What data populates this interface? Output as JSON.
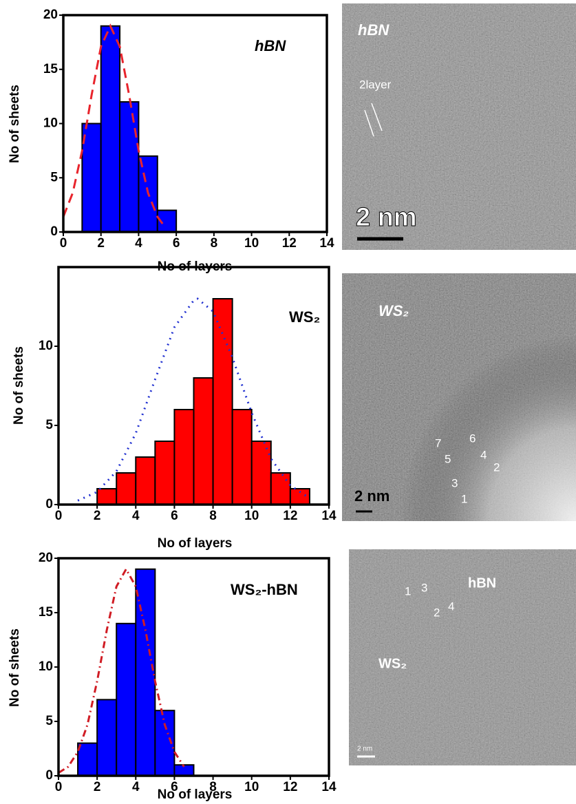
{
  "chart_data": [
    {
      "type": "histogram",
      "annotation": "hBN",
      "xlabel": "No of layers",
      "ylabel": "No of sheets",
      "bins": [
        1,
        2,
        3,
        4,
        5,
        6
      ],
      "values": [
        10,
        19,
        12,
        7,
        2
      ],
      "color": "#0000ff",
      "fit": {
        "x": [
          0,
          0.5,
          1,
          1.5,
          2,
          2.5,
          3,
          3.5,
          4,
          4.5,
          5,
          5.3
        ],
        "values": [
          1.4,
          3.6,
          7.5,
          12.6,
          17.1,
          19,
          17.1,
          12.6,
          7.5,
          3.6,
          1.4,
          0.7
        ],
        "color": "#e8242c",
        "dash": "dashed"
      },
      "xlim": [
        0,
        14
      ],
      "xticks": [
        0,
        2,
        4,
        6,
        8,
        10,
        12,
        14
      ],
      "ylim": [
        0,
        20
      ],
      "yticks": [
        0,
        5,
        10,
        15,
        20
      ]
    },
    {
      "type": "histogram",
      "annotation": "WS₂",
      "xlabel": "No of layers",
      "ylabel": "No of sheets",
      "bins": [
        2,
        3,
        4,
        5,
        6,
        7,
        8,
        9,
        10,
        11,
        12,
        13
      ],
      "values": [
        1,
        2,
        3,
        4,
        6,
        8,
        13,
        6,
        4,
        2,
        1
      ],
      "color": "#ff0000",
      "fit": {
        "x": [
          1,
          2,
          3,
          4,
          5,
          6,
          7,
          7.2,
          8,
          9,
          10,
          11,
          12,
          13
        ],
        "values": [
          0.25,
          0.8,
          2.1,
          4.5,
          7.9,
          11.2,
          12.9,
          13,
          12.2,
          9.3,
          5.8,
          2.9,
          1.2,
          0.4
        ],
        "color": "#1f2fd0",
        "dash": "dotted"
      },
      "xlim": [
        0,
        14
      ],
      "xticks": [
        0,
        2,
        4,
        6,
        8,
        10,
        12,
        14
      ],
      "ylim": [
        0,
        15
      ],
      "yticks": [
        0,
        5,
        10
      ]
    },
    {
      "type": "histogram",
      "annotation": "WS₂-hBN",
      "xlabel": "No of layers",
      "ylabel": "No of sheets",
      "bins": [
        1,
        2,
        3,
        4,
        5,
        6,
        7
      ],
      "values": [
        3,
        7,
        14,
        19,
        6,
        1
      ],
      "color": "#0000ff",
      "fit": {
        "x": [
          0,
          0.5,
          1,
          1.5,
          2,
          2.5,
          3,
          3.5,
          4,
          4.5,
          5,
          5.5,
          6,
          6.5
        ],
        "values": [
          0.27,
          0.83,
          2.2,
          4.7,
          8.7,
          13.4,
          17.4,
          19,
          17.4,
          13.4,
          8.7,
          4.7,
          2.2,
          0.83
        ],
        "color": "#d01c24",
        "dash": "dashdot"
      },
      "xlim": [
        0,
        14
      ],
      "xticks": [
        0,
        2,
        4,
        6,
        8,
        10,
        12,
        14
      ],
      "ylim": [
        0,
        20
      ],
      "yticks": [
        0,
        5,
        10,
        15,
        20
      ]
    }
  ],
  "images": [
    {
      "labels": [
        "hBN",
        "2layer",
        "2 nm"
      ]
    },
    {
      "labels": [
        "WS₂",
        "7",
        "6",
        "5",
        "4",
        "3",
        "2",
        "1",
        "2 nm"
      ]
    },
    {
      "labels": [
        "1",
        "3",
        "2",
        "4",
        "hBN",
        "WS₂",
        "2 nm"
      ]
    }
  ]
}
